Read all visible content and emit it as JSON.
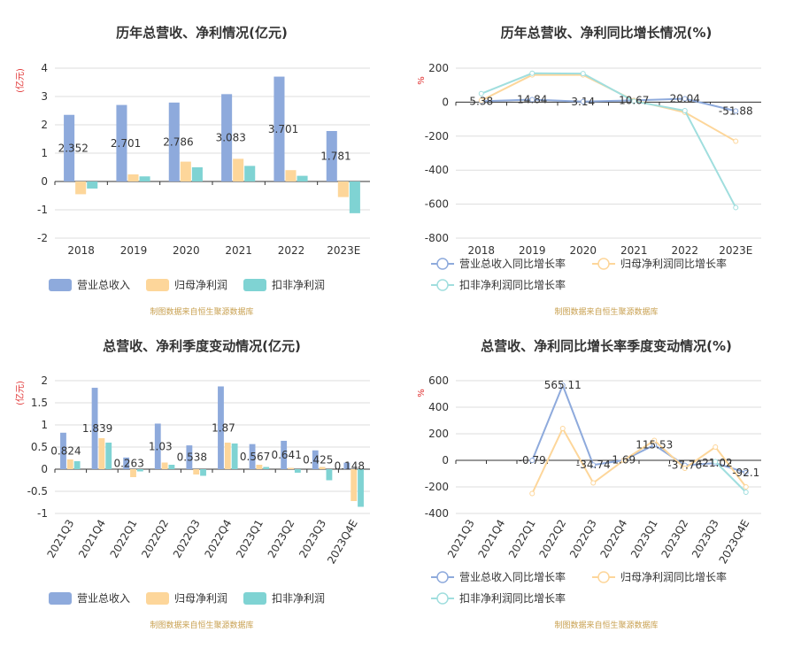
{
  "chart_data": [
    {
      "type": "bar",
      "title": "历年总营收、净利情况(亿元)",
      "y_label": "(亿元)",
      "source": "制图数据来自恒生聚源数据库",
      "categories": [
        "2018",
        "2019",
        "2020",
        "2021",
        "2022",
        "2023E"
      ],
      "series": [
        {
          "name": "营业总收入",
          "color": "#8eaadc",
          "data_labels": true,
          "values": [
            2.352,
            2.701,
            2.786,
            3.083,
            3.701,
            1.781
          ]
        },
        {
          "name": "归母净利润",
          "color": "#fdd69a",
          "values": [
            -0.45,
            0.25,
            0.7,
            0.8,
            0.4,
            -0.55
          ]
        },
        {
          "name": "扣非净利润",
          "color": "#7fd3d3",
          "values": [
            -0.25,
            0.18,
            0.5,
            0.55,
            0.2,
            -1.12
          ]
        }
      ],
      "ylim": [
        -2,
        4
      ],
      "yticks": [
        -2,
        -1,
        0,
        1,
        2,
        3,
        4
      ],
      "grid": true
    },
    {
      "type": "line",
      "title": "历年总营收、净利同比增长情况(%)",
      "y_label": "%",
      "source": "制图数据来自恒生聚源数据库",
      "categories": [
        "2018",
        "2019",
        "2020",
        "2021",
        "2022",
        "2023E"
      ],
      "series": [
        {
          "name": "营业总收入同比增长率",
          "color": "#8eaadc",
          "data_labels": true,
          "values": [
            5.38,
            14.84,
            3.14,
            10.67,
            20.04,
            -51.88
          ]
        },
        {
          "name": "归母净利润同比增长率",
          "color": "#fdd69a",
          "values": [
            10,
            160,
            160,
            10,
            -60,
            -230
          ]
        },
        {
          "name": "扣非净利润同比增长率",
          "color": "#a0dede",
          "values": [
            50,
            170,
            168,
            5,
            -50,
            -620
          ]
        }
      ],
      "ylim": [
        -800,
        200
      ],
      "yticks": [
        -800,
        -600,
        -400,
        -200,
        0,
        200
      ],
      "grid": true
    },
    {
      "type": "bar",
      "title": "总营收、净利季度变动情况(亿元)",
      "y_label": "(亿元)",
      "source": "制图数据来自恒生聚源数据库",
      "categories": [
        "2021Q3",
        "2021Q4",
        "2022Q1",
        "2022Q2",
        "2022Q3",
        "2022Q4",
        "2023Q1",
        "2023Q2",
        "2023Q3",
        "2023Q4E"
      ],
      "series": [
        {
          "name": "营业总收入",
          "color": "#8eaadc",
          "data_labels": true,
          "values": [
            0.824,
            1.839,
            0.263,
            1.03,
            0.538,
            1.87,
            0.567,
            0.641,
            0.425,
            0.148
          ]
        },
        {
          "name": "归母净利润",
          "color": "#fdd69a",
          "values": [
            0.22,
            0.7,
            -0.18,
            0.15,
            -0.12,
            0.6,
            0.1,
            0.03,
            0.05,
            -0.72
          ]
        },
        {
          "name": "扣非净利润",
          "color": "#7fd3d3",
          "values": [
            0.18,
            0.6,
            -0.05,
            0.1,
            -0.15,
            0.58,
            0.05,
            -0.08,
            -0.25,
            -0.85
          ]
        }
      ],
      "ylim": [
        -1,
        2
      ],
      "yticks": [
        -1,
        -0.5,
        0,
        0.5,
        1,
        1.5,
        2
      ],
      "grid": true
    },
    {
      "type": "line",
      "title": "总营收、净利同比增长率季度变动情况(%)",
      "y_label": "%",
      "source": "制图数据来自恒生聚源数据库",
      "categories": [
        "2021Q3",
        "2021Q4",
        "2022Q1",
        "2022Q2",
        "2022Q3",
        "2022Q4",
        "2023Q1",
        "2023Q2",
        "2023Q3",
        "2023Q4E"
      ],
      "series": [
        {
          "name": "营业总收入同比增长率",
          "color": "#8eaadc",
          "data_labels": true,
          "values": [
            null,
            null,
            -0.79,
            565.11,
            -34.74,
            1.69,
            115.53,
            -37.76,
            -21.02,
            -92.1
          ]
        },
        {
          "name": "归母净利润同比增长率",
          "color": "#fdd69a",
          "values": [
            null,
            null,
            -250,
            240,
            -170,
            0,
            150,
            -60,
            100,
            -200
          ]
        },
        {
          "name": "扣非净利润同比增长率",
          "color": "#a0dede",
          "values": [
            null,
            null,
            null,
            null,
            null,
            null,
            null,
            null,
            -10,
            -240
          ]
        }
      ],
      "ylim": [
        -400,
        600
      ],
      "yticks": [
        -400,
        -200,
        0,
        200,
        400,
        600
      ],
      "grid": true
    }
  ]
}
